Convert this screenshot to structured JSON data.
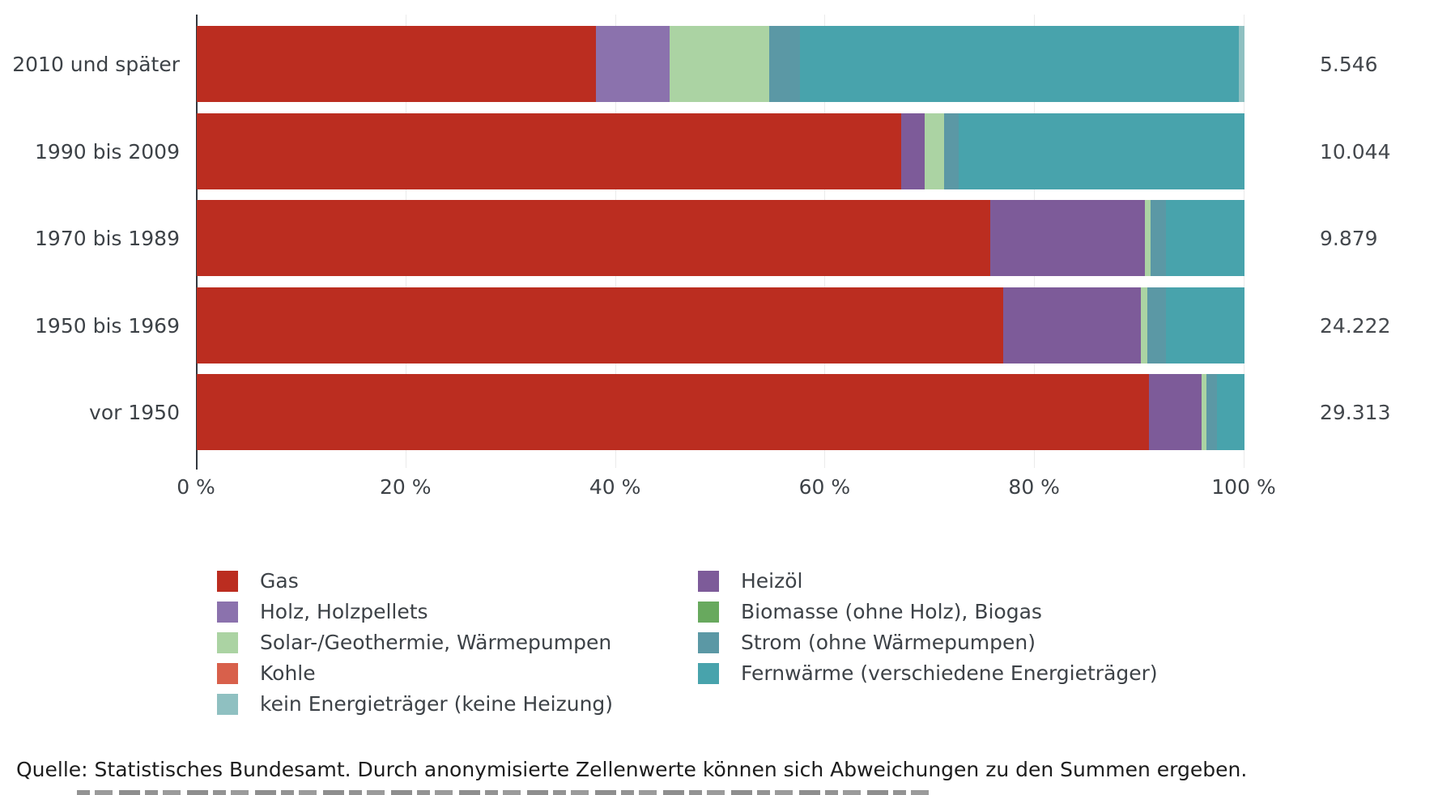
{
  "chart_data": {
    "type": "bar",
    "subtype": "horizontal-stacked-percentage",
    "categories": [
      "2010 und später",
      "1990 bis 2009",
      "1970 bis 1989",
      "1950 bis 1969",
      "vor 1950"
    ],
    "totals": [
      "5.546",
      "10.044",
      "9.879",
      "24.222",
      "29.313"
    ],
    "x_ticks": [
      "0 %",
      "20 %",
      "40 %",
      "60 %",
      "80 %",
      "100 %"
    ],
    "xlim": [
      0,
      100
    ],
    "unit": "%",
    "grid": "vertical-light",
    "legend_position": "bottom-two-columns",
    "series": [
      {
        "name": "Gas",
        "color": "#bb2d20",
        "values": [
          38.1,
          67.2,
          75.7,
          77.0,
          90.9
        ]
      },
      {
        "name": "Heizöl",
        "color": "#7d5b99",
        "values": [
          0,
          2.3,
          14.8,
          13.1,
          5.0
        ]
      },
      {
        "name": "Holz, Holzpellets",
        "color": "#8b72ad",
        "values": [
          7.0,
          0,
          0,
          0,
          0
        ]
      },
      {
        "name": "Biomasse (ohne Holz), Biogas",
        "color": "#68a95e",
        "values": [
          0,
          0,
          0,
          0,
          0
        ]
      },
      {
        "name": "Solar-/Geothermie, Wärmepumpen",
        "color": "#abd3a3",
        "values": [
          9.5,
          1.8,
          0.5,
          0.6,
          0.5
        ]
      },
      {
        "name": "Strom (ohne Wärmepumpen)",
        "color": "#5b98a5",
        "values": [
          3.0,
          1.4,
          1.5,
          1.8,
          1.0
        ]
      },
      {
        "name": "Kohle",
        "color": "#d8604b",
        "values": [
          0,
          0,
          0,
          0,
          0
        ]
      },
      {
        "name": "Fernwärme (verschiedene Energieträger)",
        "color": "#48a3ac",
        "values": [
          41.9,
          27.3,
          7.5,
          7.5,
          2.6
        ]
      },
      {
        "name": "kein Energieträger (keine Heizung)",
        "color": "#8fc0c1",
        "values": [
          0.5,
          0,
          0,
          0,
          0
        ]
      }
    ]
  },
  "legend": {
    "columns": [
      [
        "Gas",
        "Holz, Holzpellets",
        "Solar-/Geothermie, Wärmepumpen",
        "Kohle",
        "kein Energieträger (keine Heizung)"
      ],
      [
        "Heizöl",
        "Biomasse (ohne Holz), Biogas",
        "Strom (ohne Wärmepumpen)",
        "Fernwärme (verschiedene Energieträger)"
      ]
    ]
  },
  "source": "Quelle: Statistisches Bundesamt. Durch anonymisierte Zellenwerte können sich Abweichungen zu den Summen ergeben."
}
